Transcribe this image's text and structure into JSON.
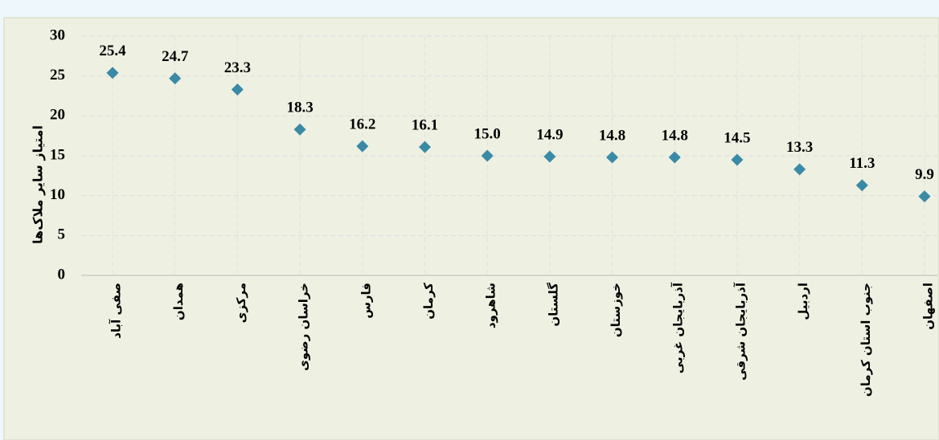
{
  "chart_data": {
    "type": "scatter",
    "y_label": "امتیاز سایر ملاک‌ها",
    "categories": [
      "صفی آباد",
      "همدان",
      "مرکزی",
      "خراسان رضوی",
      "فارس",
      "کرمان",
      "شاهرود",
      "گلستان",
      "خوزستان",
      "آذربایجان غربی",
      "آذربایجان شرقی",
      "اردبیل",
      "جنوب استان کرمان",
      "اصفهان"
    ],
    "values": [
      25.4,
      24.7,
      23.3,
      18.3,
      16.2,
      16.1,
      15.0,
      14.9,
      14.8,
      14.8,
      14.5,
      13.3,
      11.3,
      9.9
    ],
    "value_labels": [
      "25.4",
      "24.7",
      "23.3",
      "18.3",
      "16.2",
      "16.1",
      "15.0",
      "14.9",
      "14.8",
      "14.8",
      "14.5",
      "13.3",
      "11.3",
      "9.9"
    ],
    "color": "#3a8aa6",
    "ylim": [
      0,
      30
    ],
    "yticks": [
      0,
      5,
      10,
      15,
      20,
      25,
      30
    ],
    "grid": true
  }
}
